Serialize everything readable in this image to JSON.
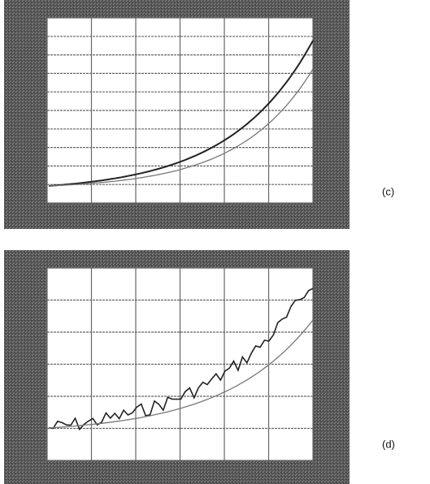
{
  "panels": [
    {
      "label": "(c)"
    },
    {
      "label": "(d)"
    }
  ]
}
